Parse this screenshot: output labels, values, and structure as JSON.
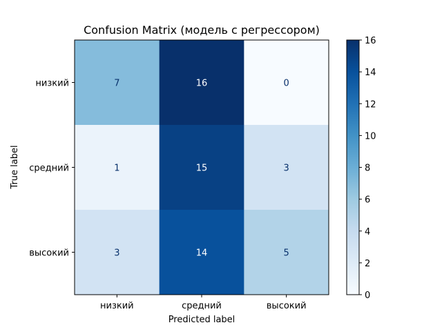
{
  "chart_data": {
    "type": "heatmap",
    "title": "Confusion Matrix (модель с регрессором)",
    "xlabel": "Predicted label",
    "ylabel": "True label",
    "x_categories": [
      "низкий",
      "средний",
      "высокий"
    ],
    "y_categories": [
      "низкий",
      "средний",
      "высокий"
    ],
    "values": [
      [
        7,
        16,
        0
      ],
      [
        1,
        15,
        3
      ],
      [
        3,
        14,
        5
      ]
    ],
    "colormap": "Blues",
    "colorbar": {
      "range": [
        0,
        16
      ],
      "ticks": [
        "0",
        "2",
        "4",
        "6",
        "8",
        "10",
        "12",
        "14",
        "16"
      ]
    }
  }
}
